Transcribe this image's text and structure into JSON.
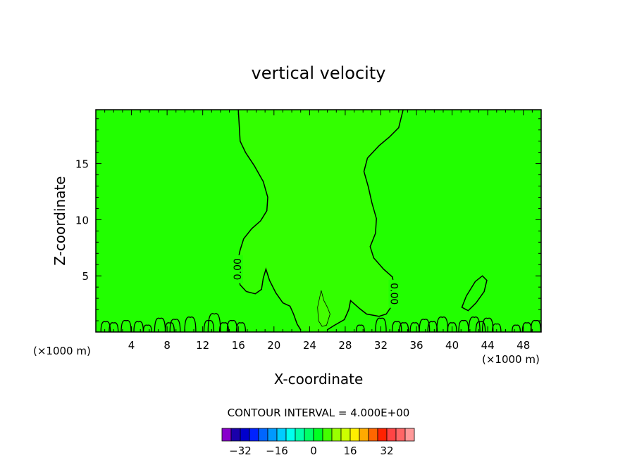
{
  "chart_data": {
    "type": "heatmap",
    "title": "vertical velocity",
    "xlabel": "X-coordinate",
    "ylabel": "Z-coordinate",
    "x_unit_left": "(×1000 m)",
    "x_unit_right": "(×1000 m)",
    "xlim": [
      0,
      50
    ],
    "ylim": [
      0,
      19.8
    ],
    "x_ticks": [
      4,
      8,
      12,
      16,
      20,
      24,
      28,
      32,
      36,
      40,
      44,
      48
    ],
    "x_tick_labels": [
      "4",
      "8",
      "12",
      "16",
      "20",
      "24",
      "28",
      "32",
      "36",
      "40",
      "44",
      "48"
    ],
    "y_ticks": [
      5,
      10,
      15
    ],
    "y_tick_labels": [
      "5",
      "10",
      "15"
    ],
    "background_color": "#22ff00",
    "updraft_color": "#33ff00",
    "contour_labels": [
      {
        "text": "0.00",
        "x": 15.9,
        "z": 5.6,
        "angle": -90
      },
      {
        "text": "0.00",
        "x": 33.5,
        "z": 3.4,
        "angle": 90
      }
    ],
    "contour_interval_text": "CONTOUR INTERVAL = 4.000E+00",
    "colorbar": {
      "colors": [
        "#8800cc",
        "#1a00aa",
        "#0000cc",
        "#0022ff",
        "#0066ff",
        "#0099ff",
        "#00ccff",
        "#00ffee",
        "#00ffaa",
        "#00ff66",
        "#00ff22",
        "#44ff00",
        "#99ff00",
        "#ccff00",
        "#ffee00",
        "#ffaa00",
        "#ff6600",
        "#ff2200",
        "#ff4444",
        "#ff6666",
        "#ff9999"
      ],
      "tick_values": [
        -32,
        -16,
        0,
        16,
        32
      ],
      "tick_labels": [
        "−32",
        "−16",
        "0",
        "16",
        "32"
      ]
    }
  }
}
